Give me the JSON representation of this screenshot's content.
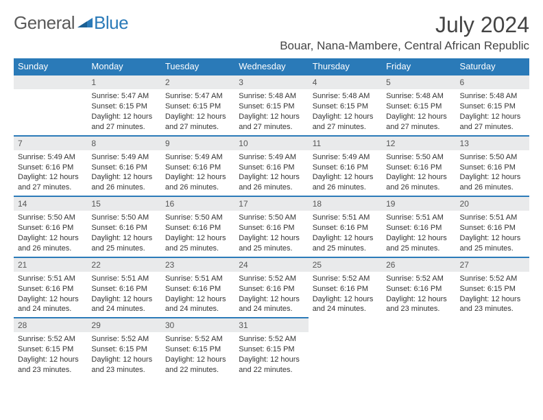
{
  "logo": {
    "text1": "General",
    "text2": "Blue"
  },
  "title": "July 2024",
  "location": "Bouar, Nana-Mambere, Central African Republic",
  "colors": {
    "accent": "#2a7ab8",
    "header_bg": "#2a7ab8",
    "daybar_bg": "#e9eaeb",
    "text": "#333333",
    "logo_gray": "#5a5a5a"
  },
  "day_headers": [
    "Sunday",
    "Monday",
    "Tuesday",
    "Wednesday",
    "Thursday",
    "Friday",
    "Saturday"
  ],
  "start_offset": 1,
  "days": [
    {
      "n": 1,
      "sunrise": "5:47 AM",
      "sunset": "6:15 PM",
      "daylight": "12 hours and 27 minutes."
    },
    {
      "n": 2,
      "sunrise": "5:47 AM",
      "sunset": "6:15 PM",
      "daylight": "12 hours and 27 minutes."
    },
    {
      "n": 3,
      "sunrise": "5:48 AM",
      "sunset": "6:15 PM",
      "daylight": "12 hours and 27 minutes."
    },
    {
      "n": 4,
      "sunrise": "5:48 AM",
      "sunset": "6:15 PM",
      "daylight": "12 hours and 27 minutes."
    },
    {
      "n": 5,
      "sunrise": "5:48 AM",
      "sunset": "6:15 PM",
      "daylight": "12 hours and 27 minutes."
    },
    {
      "n": 6,
      "sunrise": "5:48 AM",
      "sunset": "6:15 PM",
      "daylight": "12 hours and 27 minutes."
    },
    {
      "n": 7,
      "sunrise": "5:49 AM",
      "sunset": "6:16 PM",
      "daylight": "12 hours and 27 minutes."
    },
    {
      "n": 8,
      "sunrise": "5:49 AM",
      "sunset": "6:16 PM",
      "daylight": "12 hours and 26 minutes."
    },
    {
      "n": 9,
      "sunrise": "5:49 AM",
      "sunset": "6:16 PM",
      "daylight": "12 hours and 26 minutes."
    },
    {
      "n": 10,
      "sunrise": "5:49 AM",
      "sunset": "6:16 PM",
      "daylight": "12 hours and 26 minutes."
    },
    {
      "n": 11,
      "sunrise": "5:49 AM",
      "sunset": "6:16 PM",
      "daylight": "12 hours and 26 minutes."
    },
    {
      "n": 12,
      "sunrise": "5:50 AM",
      "sunset": "6:16 PM",
      "daylight": "12 hours and 26 minutes."
    },
    {
      "n": 13,
      "sunrise": "5:50 AM",
      "sunset": "6:16 PM",
      "daylight": "12 hours and 26 minutes."
    },
    {
      "n": 14,
      "sunrise": "5:50 AM",
      "sunset": "6:16 PM",
      "daylight": "12 hours and 26 minutes."
    },
    {
      "n": 15,
      "sunrise": "5:50 AM",
      "sunset": "6:16 PM",
      "daylight": "12 hours and 25 minutes."
    },
    {
      "n": 16,
      "sunrise": "5:50 AM",
      "sunset": "6:16 PM",
      "daylight": "12 hours and 25 minutes."
    },
    {
      "n": 17,
      "sunrise": "5:50 AM",
      "sunset": "6:16 PM",
      "daylight": "12 hours and 25 minutes."
    },
    {
      "n": 18,
      "sunrise": "5:51 AM",
      "sunset": "6:16 PM",
      "daylight": "12 hours and 25 minutes."
    },
    {
      "n": 19,
      "sunrise": "5:51 AM",
      "sunset": "6:16 PM",
      "daylight": "12 hours and 25 minutes."
    },
    {
      "n": 20,
      "sunrise": "5:51 AM",
      "sunset": "6:16 PM",
      "daylight": "12 hours and 25 minutes."
    },
    {
      "n": 21,
      "sunrise": "5:51 AM",
      "sunset": "6:16 PM",
      "daylight": "12 hours and 24 minutes."
    },
    {
      "n": 22,
      "sunrise": "5:51 AM",
      "sunset": "6:16 PM",
      "daylight": "12 hours and 24 minutes."
    },
    {
      "n": 23,
      "sunrise": "5:51 AM",
      "sunset": "6:16 PM",
      "daylight": "12 hours and 24 minutes."
    },
    {
      "n": 24,
      "sunrise": "5:52 AM",
      "sunset": "6:16 PM",
      "daylight": "12 hours and 24 minutes."
    },
    {
      "n": 25,
      "sunrise": "5:52 AM",
      "sunset": "6:16 PM",
      "daylight": "12 hours and 24 minutes."
    },
    {
      "n": 26,
      "sunrise": "5:52 AM",
      "sunset": "6:16 PM",
      "daylight": "12 hours and 23 minutes."
    },
    {
      "n": 27,
      "sunrise": "5:52 AM",
      "sunset": "6:15 PM",
      "daylight": "12 hours and 23 minutes."
    },
    {
      "n": 28,
      "sunrise": "5:52 AM",
      "sunset": "6:15 PM",
      "daylight": "12 hours and 23 minutes."
    },
    {
      "n": 29,
      "sunrise": "5:52 AM",
      "sunset": "6:15 PM",
      "daylight": "12 hours and 23 minutes."
    },
    {
      "n": 30,
      "sunrise": "5:52 AM",
      "sunset": "6:15 PM",
      "daylight": "12 hours and 22 minutes."
    },
    {
      "n": 31,
      "sunrise": "5:52 AM",
      "sunset": "6:15 PM",
      "daylight": "12 hours and 22 minutes."
    }
  ],
  "labels": {
    "sunrise": "Sunrise:",
    "sunset": "Sunset:",
    "daylight": "Daylight:"
  }
}
